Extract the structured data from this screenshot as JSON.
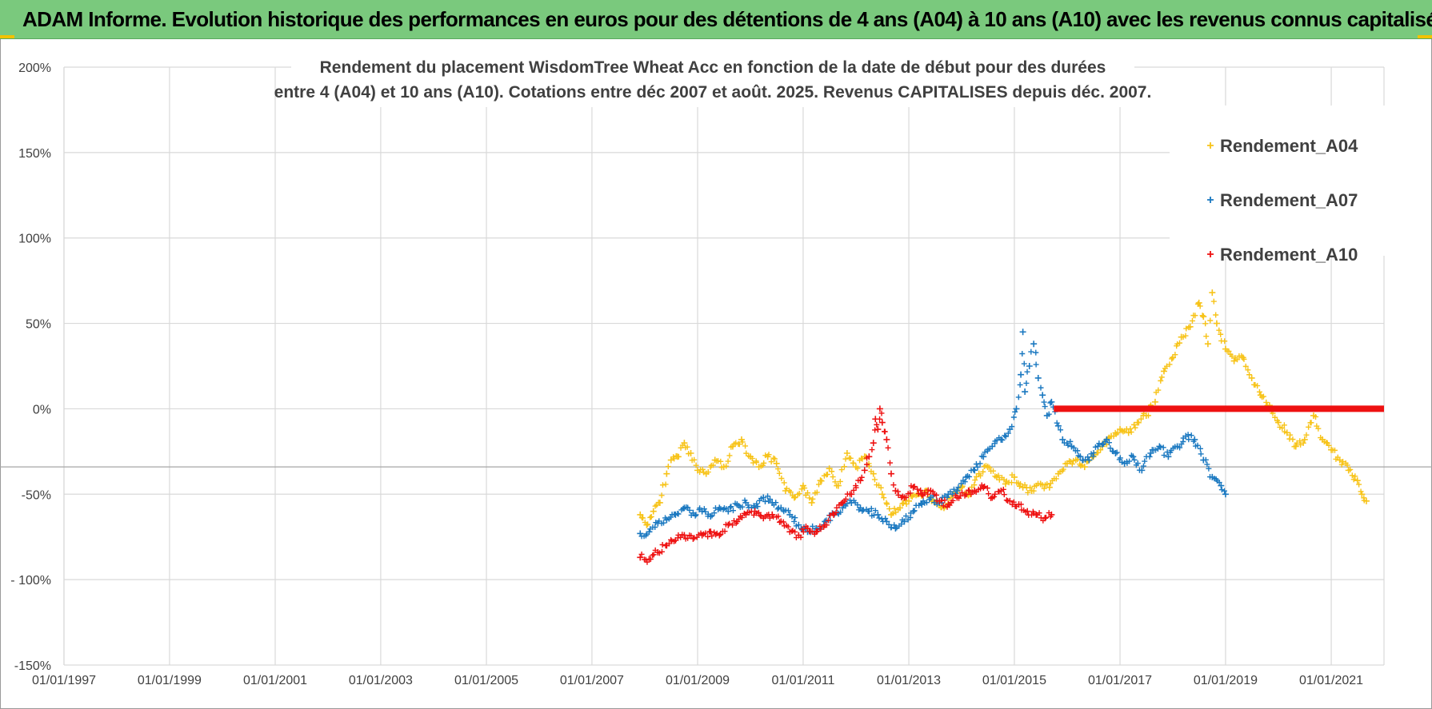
{
  "banner": {
    "title": "ADAM Informe. Evolution historique des performances en euros pour des détentions de 4 ans (A04) à 10 ans (A10) avec les revenus connus capitalisés"
  },
  "colors": {
    "banner": "#7ac97d",
    "A04": "#f7c318",
    "A07": "#1a78c0",
    "A10": "#ee1111",
    "grid": "#d9d9d9"
  },
  "chart_data": {
    "type": "scatter",
    "title_lines": [
      "Rendement du placement WisdomTree Wheat Acc en fonction de la date de début pour des durées",
      "entre 4 (A04) et 10 ans (A10).  Cotations entre déc 2007 et août. 2025. Revenus CAPITALISES depuis déc. 2007."
    ],
    "xlabel": "",
    "ylabel": "",
    "x_range": [
      "1997-01-01",
      "2022-01-01"
    ],
    "x_ticks": [
      "01/01/1997",
      "01/01/1999",
      "01/01/2001",
      "01/01/2003",
      "01/01/2005",
      "01/01/2007",
      "01/01/2009",
      "01/01/2011",
      "01/01/2013",
      "01/01/2015",
      "01/01/2017",
      "01/01/2019",
      "01/01/2021"
    ],
    "ylim": [
      -150,
      200
    ],
    "y_unit": "%",
    "y_ticks": [
      "200%",
      "150%",
      "100%",
      "50%",
      "0%",
      "-50%",
      "- 100%",
      "-150%"
    ],
    "grid": true,
    "legend_position": "top-right",
    "reference_line_y": -34,
    "series": [
      {
        "name": "Rendement_A04",
        "marker": "+",
        "points": [
          [
            "2007-12-01",
            -62
          ],
          [
            "2008-01-15",
            -68
          ],
          [
            "2008-03-01",
            -60
          ],
          [
            "2008-04-15",
            -55
          ],
          [
            "2008-06-01",
            -38
          ],
          [
            "2008-07-01",
            -30
          ],
          [
            "2008-08-15",
            -28
          ],
          [
            "2008-10-01",
            -20
          ],
          [
            "2008-11-15",
            -26
          ],
          [
            "2009-01-01",
            -36
          ],
          [
            "2009-03-01",
            -38
          ],
          [
            "2009-05-01",
            -30
          ],
          [
            "2009-07-01",
            -34
          ],
          [
            "2009-09-01",
            -22
          ],
          [
            "2009-11-01",
            -18
          ],
          [
            "2010-01-01",
            -28
          ],
          [
            "2010-03-01",
            -34
          ],
          [
            "2010-05-01",
            -28
          ],
          [
            "2010-07-01",
            -32
          ],
          [
            "2010-09-01",
            -48
          ],
          [
            "2010-11-01",
            -52
          ],
          [
            "2011-01-01",
            -45
          ],
          [
            "2011-03-01",
            -55
          ],
          [
            "2011-05-01",
            -42
          ],
          [
            "2011-07-01",
            -35
          ],
          [
            "2011-09-01",
            -45
          ],
          [
            "2011-11-01",
            -26
          ],
          [
            "2012-01-01",
            -34
          ],
          [
            "2012-03-01",
            -28
          ],
          [
            "2012-05-01",
            -38
          ],
          [
            "2012-07-01",
            -50
          ],
          [
            "2012-09-01",
            -62
          ],
          [
            "2012-11-01",
            -58
          ],
          [
            "2013-01-01",
            -54
          ],
          [
            "2013-03-01",
            -50
          ],
          [
            "2013-05-01",
            -48
          ],
          [
            "2013-07-01",
            -55
          ],
          [
            "2013-09-01",
            -58
          ],
          [
            "2013-11-01",
            -50
          ],
          [
            "2014-01-01",
            -46
          ],
          [
            "2014-03-01",
            -50
          ],
          [
            "2014-05-01",
            -38
          ],
          [
            "2014-07-01",
            -34
          ],
          [
            "2014-09-01",
            -40
          ],
          [
            "2014-11-01",
            -44
          ],
          [
            "2015-01-01",
            -40
          ],
          [
            "2015-03-01",
            -46
          ],
          [
            "2015-05-01",
            -48
          ],
          [
            "2015-07-01",
            -44
          ],
          [
            "2015-09-01",
            -46
          ],
          [
            "2015-11-01",
            -38
          ],
          [
            "2016-01-01",
            -32
          ],
          [
            "2016-03-01",
            -30
          ],
          [
            "2016-05-01",
            -34
          ],
          [
            "2016-07-01",
            -28
          ],
          [
            "2016-09-01",
            -22
          ],
          [
            "2016-11-01",
            -16
          ],
          [
            "2017-01-01",
            -12
          ],
          [
            "2017-03-01",
            -14
          ],
          [
            "2017-05-01",
            -8
          ],
          [
            "2017-07-01",
            -4
          ],
          [
            "2017-09-01",
            4
          ],
          [
            "2017-11-01",
            22
          ],
          [
            "2018-01-01",
            30
          ],
          [
            "2018-03-01",
            42
          ],
          [
            "2018-05-01",
            48
          ],
          [
            "2018-07-01",
            62
          ],
          [
            "2018-08-01",
            54
          ],
          [
            "2018-09-01",
            38
          ],
          [
            "2018-10-01",
            68
          ],
          [
            "2018-11-01",
            50
          ],
          [
            "2019-01-01",
            35
          ],
          [
            "2019-03-01",
            28
          ],
          [
            "2019-05-01",
            30
          ],
          [
            "2019-07-01",
            18
          ],
          [
            "2019-09-01",
            8
          ],
          [
            "2019-11-01",
            2
          ],
          [
            "2020-01-01",
            -8
          ],
          [
            "2020-03-01",
            -14
          ],
          [
            "2020-05-01",
            -22
          ],
          [
            "2020-07-01",
            -18
          ],
          [
            "2020-09-01",
            -4
          ],
          [
            "2020-11-01",
            -18
          ],
          [
            "2021-01-01",
            -24
          ],
          [
            "2021-03-01",
            -30
          ],
          [
            "2021-05-01",
            -36
          ],
          [
            "2021-07-01",
            -42
          ],
          [
            "2021-08-01",
            -50
          ],
          [
            "2021-09-01",
            -54
          ]
        ]
      },
      {
        "name": "Rendement_A07",
        "marker": "+",
        "points": [
          [
            "2007-12-01",
            -73
          ],
          [
            "2008-02-01",
            -72
          ],
          [
            "2008-04-01",
            -67
          ],
          [
            "2008-06-01",
            -65
          ],
          [
            "2008-08-01",
            -62
          ],
          [
            "2008-10-01",
            -58
          ],
          [
            "2008-12-01",
            -61
          ],
          [
            "2009-02-01",
            -60
          ],
          [
            "2009-04-01",
            -63
          ],
          [
            "2009-06-01",
            -58
          ],
          [
            "2009-08-01",
            -60
          ],
          [
            "2009-10-01",
            -56
          ],
          [
            "2009-12-01",
            -55
          ],
          [
            "2010-02-01",
            -58
          ],
          [
            "2010-04-01",
            -52
          ],
          [
            "2010-06-01",
            -55
          ],
          [
            "2010-08-01",
            -58
          ],
          [
            "2010-10-01",
            -62
          ],
          [
            "2010-12-01",
            -68
          ],
          [
            "2011-02-01",
            -72
          ],
          [
            "2011-04-01",
            -70
          ],
          [
            "2011-06-01",
            -66
          ],
          [
            "2011-08-01",
            -62
          ],
          [
            "2011-10-01",
            -58
          ],
          [
            "2011-12-01",
            -55
          ],
          [
            "2012-02-01",
            -58
          ],
          [
            "2012-04-01",
            -60
          ],
          [
            "2012-06-01",
            -62
          ],
          [
            "2012-08-01",
            -66
          ],
          [
            "2012-10-01",
            -70
          ],
          [
            "2012-12-01",
            -66
          ],
          [
            "2013-02-01",
            -60
          ],
          [
            "2013-04-01",
            -56
          ],
          [
            "2013-06-01",
            -52
          ],
          [
            "2013-08-01",
            -55
          ],
          [
            "2013-10-01",
            -50
          ],
          [
            "2013-12-01",
            -48
          ],
          [
            "2014-02-01",
            -40
          ],
          [
            "2014-04-01",
            -36
          ],
          [
            "2014-06-01",
            -28
          ],
          [
            "2014-08-01",
            -22
          ],
          [
            "2014-10-01",
            -18
          ],
          [
            "2014-12-01",
            -12
          ],
          [
            "2015-01-15",
            0
          ],
          [
            "2015-02-15",
            20
          ],
          [
            "2015-03-01",
            45
          ],
          [
            "2015-03-15",
            10
          ],
          [
            "2015-04-15",
            25
          ],
          [
            "2015-05-15",
            38
          ],
          [
            "2015-06-15",
            18
          ],
          [
            "2015-07-15",
            8
          ],
          [
            "2015-08-15",
            -4
          ],
          [
            "2015-09-15",
            4
          ],
          [
            "2015-11-01",
            -10
          ],
          [
            "2015-12-01",
            -18
          ],
          [
            "2016-02-01",
            -22
          ],
          [
            "2016-04-01",
            -28
          ],
          [
            "2016-06-01",
            -30
          ],
          [
            "2016-08-01",
            -22
          ],
          [
            "2016-10-01",
            -18
          ],
          [
            "2016-12-01",
            -26
          ],
          [
            "2017-02-01",
            -32
          ],
          [
            "2017-04-01",
            -28
          ],
          [
            "2017-06-01",
            -36
          ],
          [
            "2017-08-01",
            -26
          ],
          [
            "2017-10-01",
            -22
          ],
          [
            "2017-12-01",
            -28
          ],
          [
            "2018-02-01",
            -22
          ],
          [
            "2018-04-01",
            -16
          ],
          [
            "2018-06-01",
            -18
          ],
          [
            "2018-08-01",
            -30
          ],
          [
            "2018-10-01",
            -40
          ],
          [
            "2018-12-01",
            -45
          ],
          [
            "2019-01-01",
            -50
          ]
        ]
      },
      {
        "name": "Rendement_A10",
        "marker": "+",
        "points": [
          [
            "2007-12-01",
            -87
          ],
          [
            "2008-02-01",
            -88
          ],
          [
            "2008-04-01",
            -84
          ],
          [
            "2008-06-01",
            -80
          ],
          [
            "2008-08-01",
            -77
          ],
          [
            "2008-10-01",
            -74
          ],
          [
            "2008-12-01",
            -76
          ],
          [
            "2009-02-01",
            -74
          ],
          [
            "2009-04-01",
            -72
          ],
          [
            "2009-06-01",
            -74
          ],
          [
            "2009-08-01",
            -68
          ],
          [
            "2009-10-01",
            -66
          ],
          [
            "2009-12-01",
            -62
          ],
          [
            "2010-02-01",
            -60
          ],
          [
            "2010-04-01",
            -64
          ],
          [
            "2010-06-01",
            -62
          ],
          [
            "2010-08-01",
            -66
          ],
          [
            "2010-10-01",
            -72
          ],
          [
            "2010-12-01",
            -74
          ],
          [
            "2011-02-01",
            -70
          ],
          [
            "2011-04-01",
            -72
          ],
          [
            "2011-06-01",
            -68
          ],
          [
            "2011-08-01",
            -62
          ],
          [
            "2011-10-01",
            -55
          ],
          [
            "2011-12-01",
            -50
          ],
          [
            "2012-02-01",
            -42
          ],
          [
            "2012-03-01",
            -36
          ],
          [
            "2012-04-01",
            -28
          ],
          [
            "2012-05-01",
            -20
          ],
          [
            "2012-05-15",
            -6
          ],
          [
            "2012-06-01",
            -12
          ],
          [
            "2012-06-15",
            0
          ],
          [
            "2012-07-01",
            -8
          ],
          [
            "2012-08-01",
            -18
          ],
          [
            "2012-09-01",
            -38
          ],
          [
            "2012-10-01",
            -48
          ],
          [
            "2012-12-01",
            -52
          ],
          [
            "2013-02-01",
            -46
          ],
          [
            "2013-04-01",
            -50
          ],
          [
            "2013-06-01",
            -48
          ],
          [
            "2013-08-01",
            -54
          ],
          [
            "2013-10-01",
            -56
          ],
          [
            "2013-12-01",
            -52
          ],
          [
            "2014-02-01",
            -50
          ],
          [
            "2014-04-01",
            -48
          ],
          [
            "2014-06-01",
            -46
          ],
          [
            "2014-08-01",
            -52
          ],
          [
            "2014-10-01",
            -48
          ],
          [
            "2014-12-01",
            -54
          ],
          [
            "2015-02-01",
            -56
          ],
          [
            "2015-04-01",
            -60
          ],
          [
            "2015-06-01",
            -62
          ],
          [
            "2015-08-01",
            -64
          ],
          [
            "2015-09-15",
            -62
          ]
        ],
        "segment": {
          "x": [
            "2015-10-01",
            "2022-01-01"
          ],
          "y": 0
        }
      }
    ]
  }
}
